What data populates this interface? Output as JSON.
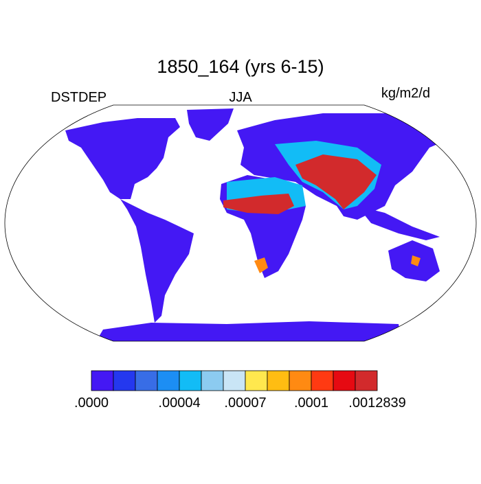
{
  "title": "1850_164 (yrs 6-15)",
  "left_label": "DSTDEP",
  "center_label": "JJA",
  "right_label": "kg/m2/d",
  "colorbar": {
    "colors": [
      "#4418f4",
      "#2438ef",
      "#386de6",
      "#1c8ef4",
      "#12bcf6",
      "#8ccbf0",
      "#c9e5f6",
      "#ffe84e",
      "#ffbd12",
      "#ff8a12",
      "#ff3a12",
      "#e60a12",
      "#d22a2c"
    ],
    "levels": [
      ".0000",
      null,
      null,
      null,
      ".00004",
      null,
      null,
      ".00007",
      null,
      null,
      ".0001",
      null,
      null,
      ".0012839"
    ]
  }
}
